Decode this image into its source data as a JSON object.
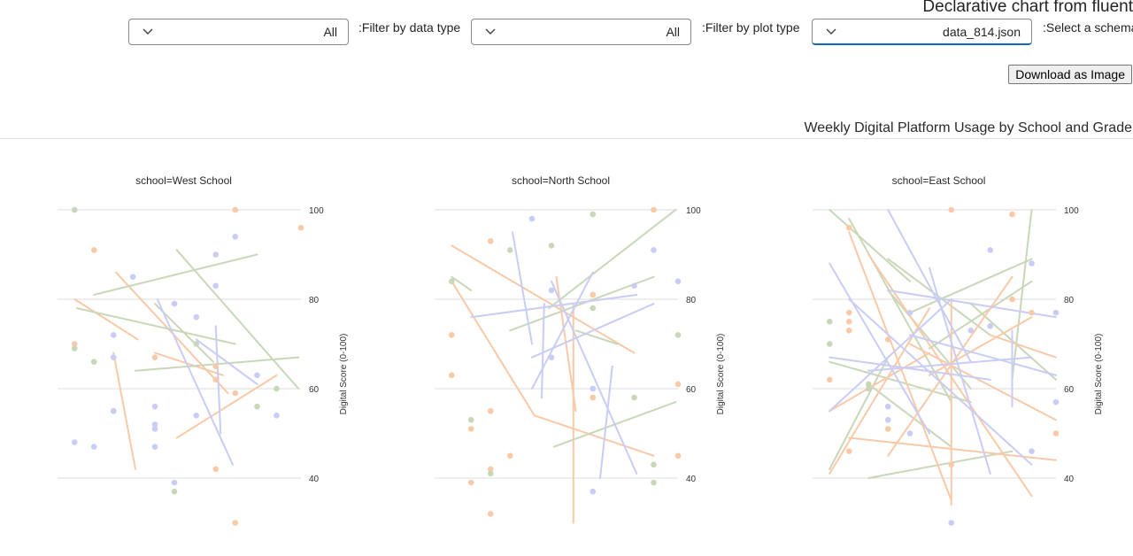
{
  "app": {
    "title": "Declarative chart from fluent"
  },
  "controls": {
    "data_type": {
      "label": ":Filter by data type",
      "value": "All"
    },
    "plot_type": {
      "label": ":Filter by plot type",
      "value": "All"
    },
    "schema": {
      "label": ":Select a schema",
      "value": "data_814.json"
    },
    "download_label": "Download as Image",
    "icon": "chevron-down-icon"
  },
  "chart_data": {
    "type": "line",
    "title": "Weekly Digital Platform Usage by School and Grade",
    "ylabel": "Digital Score (0-100)",
    "ylim": [
      30,
      100
    ],
    "yticks": [
      40,
      60,
      80,
      100
    ],
    "grid": true,
    "colors": {
      "orange": "#f9c9a8",
      "green": "#c9d7b9",
      "blue": "#c9cdf5",
      "grid": "#dcdcdc"
    },
    "facets": [
      {
        "label": "school=West School",
        "points": [
          {
            "x": 0.07,
            "y": 100,
            "c": "green"
          },
          {
            "x": 0.15,
            "y": 91,
            "c": "orange"
          },
          {
            "x": 0.07,
            "y": 70,
            "c": "orange"
          },
          {
            "x": 0.07,
            "y": 69,
            "c": "green"
          },
          {
            "x": 0.15,
            "y": 66,
            "c": "green"
          },
          {
            "x": 0.07,
            "y": 48,
            "c": "blue"
          },
          {
            "x": 0.15,
            "y": 47,
            "c": "blue"
          },
          {
            "x": 0.23,
            "y": 72,
            "c": "blue"
          },
          {
            "x": 0.23,
            "y": 67,
            "c": "blue"
          },
          {
            "x": 0.23,
            "y": 55,
            "c": "green"
          },
          {
            "x": 0.23,
            "y": 55,
            "c": "blue"
          },
          {
            "x": 0.31,
            "y": 85,
            "c": "blue"
          },
          {
            "x": 0.4,
            "y": 67,
            "c": "orange"
          },
          {
            "x": 0.4,
            "y": 56,
            "c": "blue"
          },
          {
            "x": 0.4,
            "y": 51,
            "c": "blue"
          },
          {
            "x": 0.4,
            "y": 52,
            "c": "blue"
          },
          {
            "x": 0.4,
            "y": 47,
            "c": "blue"
          },
          {
            "x": 0.48,
            "y": 79,
            "c": "orange"
          },
          {
            "x": 0.48,
            "y": 79,
            "c": "blue"
          },
          {
            "x": 0.48,
            "y": 39,
            "c": "blue"
          },
          {
            "x": 0.48,
            "y": 37,
            "c": "green"
          },
          {
            "x": 0.57,
            "y": 76,
            "c": "blue"
          },
          {
            "x": 0.57,
            "y": 70,
            "c": "green"
          },
          {
            "x": 0.57,
            "y": 54,
            "c": "blue"
          },
          {
            "x": 0.65,
            "y": 90,
            "c": "blue"
          },
          {
            "x": 0.65,
            "y": 83,
            "c": "blue"
          },
          {
            "x": 0.65,
            "y": 65,
            "c": "orange"
          },
          {
            "x": 0.65,
            "y": 62,
            "c": "orange"
          },
          {
            "x": 0.65,
            "y": 42,
            "c": "orange"
          },
          {
            "x": 0.73,
            "y": 100,
            "c": "orange"
          },
          {
            "x": 0.73,
            "y": 94,
            "c": "blue"
          },
          {
            "x": 0.73,
            "y": 59,
            "c": "orange"
          },
          {
            "x": 0.73,
            "y": 30,
            "c": "orange"
          },
          {
            "x": 0.82,
            "y": 63,
            "c": "blue"
          },
          {
            "x": 0.82,
            "y": 56,
            "c": "green"
          },
          {
            "x": 0.9,
            "y": 60,
            "c": "green"
          },
          {
            "x": 0.9,
            "y": 54,
            "c": "blue"
          },
          {
            "x": 1.0,
            "y": 96,
            "c": "orange"
          }
        ],
        "segments": [
          {
            "x1": 0.07,
            "y1": 80,
            "x2": 0.33,
            "y2": 71,
            "c": "orange"
          },
          {
            "x1": 0.24,
            "y1": 86,
            "x2": 0.7,
            "y2": 59,
            "c": "orange"
          },
          {
            "x1": 0.23,
            "y1": 68,
            "x2": 0.32,
            "y2": 42,
            "c": "orange"
          },
          {
            "x1": 0.49,
            "y1": 49,
            "x2": 0.9,
            "y2": 63,
            "c": "orange"
          },
          {
            "x1": 0.4,
            "y1": 68,
            "x2": 0.68,
            "y2": 63,
            "c": "orange"
          },
          {
            "x1": 0.15,
            "y1": 81,
            "x2": 0.82,
            "y2": 90,
            "c": "green"
          },
          {
            "x1": 0.08,
            "y1": 78,
            "x2": 0.73,
            "y2": 70,
            "c": "green"
          },
          {
            "x1": 0.32,
            "y1": 64,
            "x2": 0.99,
            "y2": 67,
            "c": "green"
          },
          {
            "x1": 0.49,
            "y1": 91,
            "x2": 0.99,
            "y2": 60,
            "c": "green"
          },
          {
            "x1": 0.4,
            "y1": 79,
            "x2": 0.64,
            "y2": 66,
            "c": "green"
          },
          {
            "x1": 0.41,
            "y1": 80,
            "x2": 0.72,
            "y2": 43,
            "c": "blue"
          },
          {
            "x1": 0.65,
            "y1": 74,
            "x2": 0.67,
            "y2": 50,
            "c": "blue"
          },
          {
            "x1": 0.57,
            "y1": 71,
            "x2": 0.82,
            "y2": 61,
            "c": "blue"
          }
        ]
      },
      {
        "label": "school=North School",
        "points": [
          {
            "x": 0.07,
            "y": 84,
            "c": "green"
          },
          {
            "x": 0.07,
            "y": 72,
            "c": "orange"
          },
          {
            "x": 0.07,
            "y": 63,
            "c": "orange"
          },
          {
            "x": 0.15,
            "y": 53,
            "c": "green"
          },
          {
            "x": 0.15,
            "y": 51,
            "c": "orange"
          },
          {
            "x": 0.23,
            "y": 93,
            "c": "orange"
          },
          {
            "x": 0.23,
            "y": 55,
            "c": "orange"
          },
          {
            "x": 0.23,
            "y": 42,
            "c": "orange"
          },
          {
            "x": 0.23,
            "y": 41,
            "c": "green"
          },
          {
            "x": 0.23,
            "y": 32,
            "c": "orange"
          },
          {
            "x": 0.31,
            "y": 91,
            "c": "green"
          },
          {
            "x": 0.31,
            "y": 45,
            "c": "orange"
          },
          {
            "x": 0.4,
            "y": 98,
            "c": "blue"
          },
          {
            "x": 0.15,
            "y": 39,
            "c": "orange"
          },
          {
            "x": 0.48,
            "y": 92,
            "c": "green"
          },
          {
            "x": 0.48,
            "y": 82,
            "c": "blue"
          },
          {
            "x": 0.48,
            "y": 67,
            "c": "blue"
          },
          {
            "x": 0.65,
            "y": 99,
            "c": "green"
          },
          {
            "x": 0.65,
            "y": 81,
            "c": "orange"
          },
          {
            "x": 0.65,
            "y": 78,
            "c": "green"
          },
          {
            "x": 0.65,
            "y": 60,
            "c": "blue"
          },
          {
            "x": 0.65,
            "y": 58,
            "c": "orange"
          },
          {
            "x": 0.65,
            "y": 37,
            "c": "blue"
          },
          {
            "x": 0.82,
            "y": 83,
            "c": "blue"
          },
          {
            "x": 0.82,
            "y": 58,
            "c": "green"
          },
          {
            "x": 0.9,
            "y": 100,
            "c": "orange"
          },
          {
            "x": 0.9,
            "y": 91,
            "c": "blue"
          },
          {
            "x": 0.9,
            "y": 43,
            "c": "green"
          },
          {
            "x": 0.9,
            "y": 39,
            "c": "green"
          },
          {
            "x": 1.0,
            "y": 84,
            "c": "blue"
          },
          {
            "x": 1.0,
            "y": 72,
            "c": "green"
          },
          {
            "x": 1.0,
            "y": 61,
            "c": "orange"
          },
          {
            "x": 1.0,
            "y": 45,
            "c": "orange"
          }
        ],
        "segments": [
          {
            "x1": 0.07,
            "y1": 84,
            "x2": 0.41,
            "y2": 54,
            "c": "orange"
          },
          {
            "x1": 0.41,
            "y1": 54,
            "x2": 0.9,
            "y2": 45,
            "c": "orange"
          },
          {
            "x1": 0.07,
            "y1": 92,
            "x2": 0.82,
            "y2": 68,
            "c": "orange"
          },
          {
            "x1": 0.57,
            "y1": 79,
            "x2": 0.57,
            "y2": 30,
            "c": "orange"
          },
          {
            "x1": 0.5,
            "y1": 85,
            "x2": 0.58,
            "y2": 55,
            "c": "orange"
          },
          {
            "x1": 0.07,
            "y1": 85,
            "x2": 0.15,
            "y2": 82,
            "c": "green"
          },
          {
            "x1": 0.31,
            "y1": 73,
            "x2": 0.9,
            "y2": 85,
            "c": "green"
          },
          {
            "x1": 0.47,
            "y1": 78,
            "x2": 0.99,
            "y2": 100,
            "c": "green"
          },
          {
            "x1": 0.49,
            "y1": 47,
            "x2": 0.99,
            "y2": 57,
            "c": "green"
          },
          {
            "x1": 0.58,
            "y1": 73,
            "x2": 0.75,
            "y2": 70,
            "c": "green"
          },
          {
            "x1": 0.32,
            "y1": 95,
            "x2": 0.4,
            "y2": 70,
            "c": "blue"
          },
          {
            "x1": 0.15,
            "y1": 76,
            "x2": 0.83,
            "y2": 81,
            "c": "blue"
          },
          {
            "x1": 0.4,
            "y1": 60,
            "x2": 0.65,
            "y2": 86,
            "c": "blue"
          },
          {
            "x1": 0.4,
            "y1": 67,
            "x2": 0.9,
            "y2": 79,
            "c": "blue"
          },
          {
            "x1": 0.48,
            "y1": 84,
            "x2": 0.83,
            "y2": 41,
            "c": "blue"
          },
          {
            "x1": 0.73,
            "y1": 65,
            "x2": 0.68,
            "y2": 40,
            "c": "blue"
          },
          {
            "x1": 0.45,
            "y1": 79,
            "x2": 0.44,
            "y2": 58,
            "c": "blue"
          }
        ]
      },
      {
        "label": "school=East School",
        "points": [
          {
            "x": 0.07,
            "y": 75,
            "c": "green"
          },
          {
            "x": 0.07,
            "y": 70,
            "c": "green"
          },
          {
            "x": 0.07,
            "y": 62,
            "c": "orange"
          },
          {
            "x": 0.15,
            "y": 96,
            "c": "orange"
          },
          {
            "x": 0.15,
            "y": 77,
            "c": "orange"
          },
          {
            "x": 0.15,
            "y": 75,
            "c": "orange"
          },
          {
            "x": 0.15,
            "y": 73,
            "c": "orange"
          },
          {
            "x": 0.15,
            "y": 46,
            "c": "orange"
          },
          {
            "x": 0.23,
            "y": 61,
            "c": "green"
          },
          {
            "x": 0.23,
            "y": 60,
            "c": "green"
          },
          {
            "x": 0.31,
            "y": 71,
            "c": "orange"
          },
          {
            "x": 0.31,
            "y": 56,
            "c": "blue"
          },
          {
            "x": 0.31,
            "y": 53,
            "c": "blue"
          },
          {
            "x": 0.31,
            "y": 51,
            "c": "orange"
          },
          {
            "x": 0.4,
            "y": 77,
            "c": "blue"
          },
          {
            "x": 0.4,
            "y": 50,
            "c": "blue"
          },
          {
            "x": 0.57,
            "y": 100,
            "c": "orange"
          },
          {
            "x": 0.57,
            "y": 43,
            "c": "orange"
          },
          {
            "x": 0.57,
            "y": 30,
            "c": "blue"
          },
          {
            "x": 0.65,
            "y": 73,
            "c": "blue"
          },
          {
            "x": 0.73,
            "y": 91,
            "c": "blue"
          },
          {
            "x": 0.73,
            "y": 74,
            "c": "blue"
          },
          {
            "x": 0.82,
            "y": 99,
            "c": "orange"
          },
          {
            "x": 0.82,
            "y": 80,
            "c": "orange"
          },
          {
            "x": 0.9,
            "y": 88,
            "c": "blue"
          },
          {
            "x": 0.9,
            "y": 77,
            "c": "orange"
          },
          {
            "x": 0.9,
            "y": 46,
            "c": "blue"
          },
          {
            "x": 1.0,
            "y": 77,
            "c": "blue"
          },
          {
            "x": 1.0,
            "y": 57,
            "c": "blue"
          },
          {
            "x": 1.0,
            "y": 50,
            "c": "orange"
          }
        ],
        "segments": [
          {
            "x1": 0.07,
            "y1": 100,
            "x2": 0.4,
            "y2": 84,
            "c": "green"
          },
          {
            "x1": 0.15,
            "y1": 98,
            "x2": 0.57,
            "y2": 57,
            "c": "green"
          },
          {
            "x1": 0.07,
            "y1": 66,
            "x2": 0.65,
            "y2": 57,
            "c": "green"
          },
          {
            "x1": 0.23,
            "y1": 40,
            "x2": 0.82,
            "y2": 46,
            "c": "green"
          },
          {
            "x1": 0.31,
            "y1": 89,
            "x2": 0.73,
            "y2": 72,
            "c": "green"
          },
          {
            "x1": 0.4,
            "y1": 77,
            "x2": 0.9,
            "y2": 89,
            "c": "green"
          },
          {
            "x1": 0.82,
            "y1": 62,
            "x2": 0.9,
            "y2": 100,
            "c": "green"
          },
          {
            "x1": 0.65,
            "y1": 79,
            "x2": 1.0,
            "y2": 62,
            "c": "green"
          },
          {
            "x1": 0.07,
            "y1": 42,
            "x2": 0.31,
            "y2": 67,
            "c": "green"
          },
          {
            "x1": 0.23,
            "y1": 61,
            "x2": 0.57,
            "y2": 47,
            "c": "green"
          },
          {
            "x1": 0.48,
            "y1": 69,
            "x2": 0.9,
            "y2": 84,
            "c": "green"
          },
          {
            "x1": 0.31,
            "y1": 82,
            "x2": 0.65,
            "y2": 60,
            "c": "green"
          },
          {
            "x1": 0.07,
            "y1": 41,
            "x2": 0.48,
            "y2": 78,
            "c": "orange"
          },
          {
            "x1": 0.15,
            "y1": 95,
            "x2": 0.57,
            "y2": 35,
            "c": "orange"
          },
          {
            "x1": 0.23,
            "y1": 90,
            "x2": 0.9,
            "y2": 36,
            "c": "orange"
          },
          {
            "x1": 0.15,
            "y1": 49,
            "x2": 1.0,
            "y2": 44,
            "c": "orange"
          },
          {
            "x1": 0.31,
            "y1": 45,
            "x2": 0.82,
            "y2": 85,
            "c": "orange"
          },
          {
            "x1": 0.4,
            "y1": 70,
            "x2": 1.0,
            "y2": 53,
            "c": "orange"
          },
          {
            "x1": 0.57,
            "y1": 80,
            "x2": 0.57,
            "y2": 34,
            "c": "orange"
          },
          {
            "x1": 0.07,
            "y1": 55,
            "x2": 0.48,
            "y2": 68,
            "c": "orange"
          },
          {
            "x1": 0.48,
            "y1": 63,
            "x2": 0.9,
            "y2": 76,
            "c": "orange"
          },
          {
            "x1": 0.73,
            "y1": 72,
            "x2": 1.0,
            "y2": 67,
            "c": "orange"
          },
          {
            "x1": 0.07,
            "y1": 88,
            "x2": 0.48,
            "y2": 50,
            "c": "blue"
          },
          {
            "x1": 0.31,
            "y1": 100,
            "x2": 0.65,
            "y2": 66,
            "c": "blue"
          },
          {
            "x1": 0.07,
            "y1": 67,
            "x2": 0.73,
            "y2": 62,
            "c": "blue"
          },
          {
            "x1": 0.07,
            "y1": 55,
            "x2": 0.57,
            "y2": 80,
            "c": "blue"
          },
          {
            "x1": 0.15,
            "y1": 80,
            "x2": 0.9,
            "y2": 43,
            "c": "blue"
          },
          {
            "x1": 0.31,
            "y1": 82,
            "x2": 1.0,
            "y2": 76,
            "c": "blue"
          },
          {
            "x1": 0.4,
            "y1": 72,
            "x2": 1.0,
            "y2": 63,
            "c": "blue"
          },
          {
            "x1": 0.48,
            "y1": 87,
            "x2": 0.73,
            "y2": 41,
            "c": "blue"
          },
          {
            "x1": 0.82,
            "y1": 73,
            "x2": 0.82,
            "y2": 56,
            "c": "blue"
          },
          {
            "x1": 0.23,
            "y1": 64,
            "x2": 0.9,
            "y2": 67,
            "c": "blue"
          }
        ]
      }
    ]
  }
}
